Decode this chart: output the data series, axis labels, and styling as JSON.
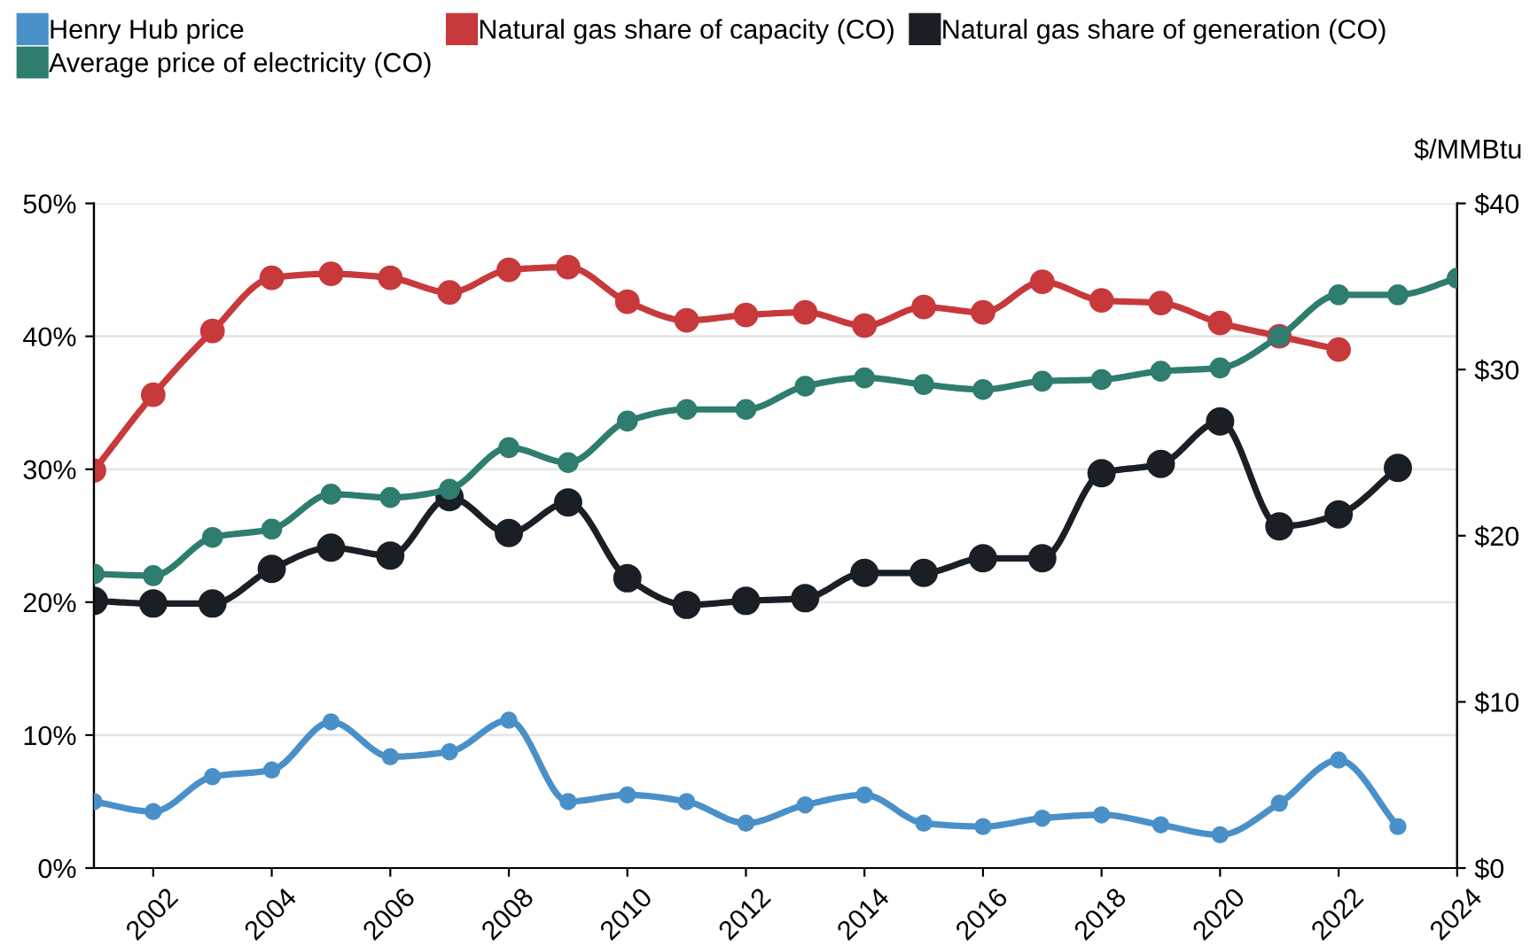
{
  "chart_data": {
    "type": "line",
    "y2label": "$/MMBtu",
    "x": [
      2001,
      2002,
      2003,
      2004,
      2005,
      2006,
      2007,
      2008,
      2009,
      2010,
      2011,
      2012,
      2013,
      2014,
      2015,
      2016,
      2017,
      2018,
      2019,
      2020,
      2021,
      2022,
      2023,
      2024
    ],
    "series": [
      {
        "name": "Henry Hub price",
        "color": "#4a90c8",
        "axis": "y2",
        "values": [
          4.0,
          3.4,
          5.5,
          5.9,
          8.8,
          6.7,
          7.0,
          8.9,
          4.0,
          4.4,
          4.0,
          2.7,
          3.8,
          4.4,
          2.7,
          2.5,
          3.0,
          3.2,
          2.6,
          2.0,
          3.9,
          6.5,
          2.5,
          null
        ]
      },
      {
        "name": "Average price of electricity (CO)",
        "color": "#2e7d6e",
        "axis": "y2",
        "values": [
          17.7,
          17.6,
          19.9,
          20.4,
          22.5,
          22.3,
          22.8,
          25.3,
          24.4,
          26.9,
          27.6,
          27.6,
          29.0,
          29.5,
          29.1,
          28.8,
          29.3,
          29.4,
          29.9,
          30.1,
          32.0,
          34.5,
          34.5,
          35.5
        ]
      },
      {
        "name": "Natural gas share of capacity (CO)",
        "color": "#c8393b",
        "axis": "y",
        "values": [
          29.9,
          35.6,
          40.4,
          44.4,
          44.7,
          44.4,
          43.3,
          45.0,
          45.2,
          42.6,
          41.2,
          41.6,
          41.8,
          40.8,
          42.2,
          41.8,
          44.1,
          42.7,
          42.5,
          41.0,
          40.0,
          39.0,
          null,
          null
        ]
      },
      {
        "name": "Natural gas share of generation (CO)",
        "color": "#1a1f26",
        "axis": "y",
        "values": [
          20.1,
          19.9,
          19.9,
          22.5,
          24.1,
          23.5,
          27.9,
          25.2,
          27.5,
          21.8,
          19.8,
          20.1,
          20.3,
          22.2,
          22.2,
          23.3,
          23.3,
          29.7,
          30.4,
          33.6,
          25.7,
          26.6,
          30.1,
          null
        ]
      }
    ],
    "xlim": [
      2001,
      2024
    ],
    "xticks": [
      2002,
      2004,
      2006,
      2008,
      2010,
      2012,
      2014,
      2016,
      2018,
      2020,
      2022,
      2024
    ],
    "ylim": [
      0,
      50
    ],
    "yticks": [
      {
        "value": 0,
        "label": "0%"
      },
      {
        "value": 10,
        "label": "10%"
      },
      {
        "value": 20,
        "label": "20%"
      },
      {
        "value": 30,
        "label": "30%"
      },
      {
        "value": 40,
        "label": "40%"
      },
      {
        "value": 50,
        "label": "50%"
      }
    ],
    "y2lim": [
      0,
      40
    ],
    "y2ticks": [
      {
        "value": 0,
        "label": "$0"
      },
      {
        "value": 10,
        "label": "$10"
      },
      {
        "value": 20,
        "label": "$20"
      },
      {
        "value": 30,
        "label": "$30"
      },
      {
        "value": 40,
        "label": "$40"
      }
    ],
    "grid": "y",
    "legend": "top",
    "marker": "circle",
    "line_style": "solid"
  }
}
